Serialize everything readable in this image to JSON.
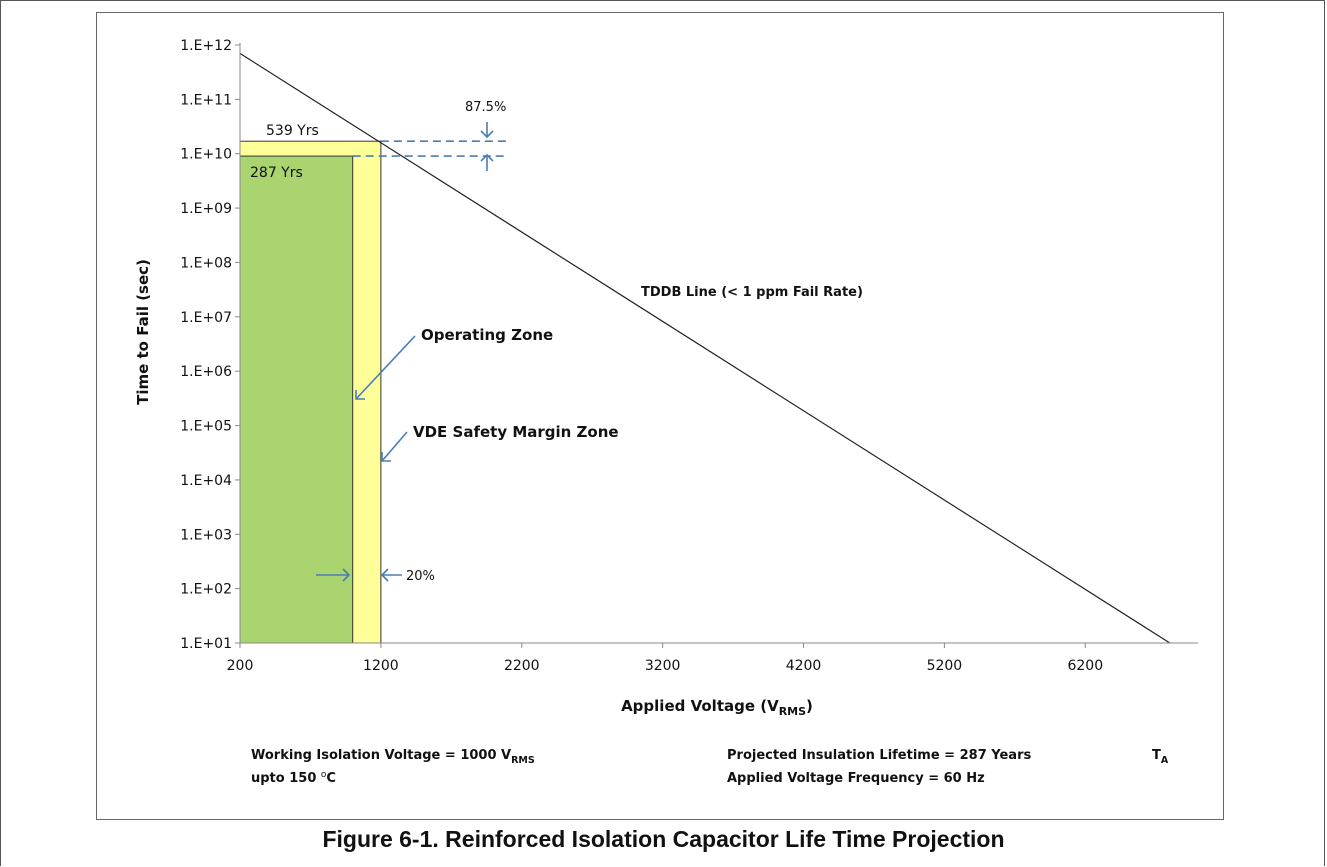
{
  "caption": "Figure 6-1. Reinforced Isolation Capacitor Life Time Projection",
  "chart_data": {
    "type": "line",
    "title": "",
    "xlabel_main": "Applied Voltage (V",
    "xlabel_sub": "RMS",
    "xlabel_close": ")",
    "ylabel": "Time to Fail (sec)",
    "x_ticks": [
      200,
      1200,
      2200,
      3200,
      4200,
      5200,
      6200
    ],
    "x_tick_labels": [
      "200",
      "1200",
      "2200",
      "3200",
      "4200",
      "5200",
      "6200"
    ],
    "xlim": [
      200,
      7000
    ],
    "y_scale": "log",
    "ylim": [
      10.0,
      1000000000000.0
    ],
    "y_ticks": [
      10.0,
      100.0,
      1000.0,
      10000.0,
      100000.0,
      1000000.0,
      10000000.0,
      100000000.0,
      1000000000.0,
      10000000000.0,
      100000000000.0,
      1000000000000.0
    ],
    "y_tick_labels": [
      "1.E+01",
      "1.E+02",
      "1.E+03",
      "1.E+04",
      "1.E+05",
      "1.E+06",
      "1.E+07",
      "1.E+08",
      "1.E+09",
      "1.E+10",
      "1.E+11",
      "1.E+12"
    ],
    "grid": false,
    "series": [
      {
        "name": "TDDB Line (< 1 ppm Fail Rate)",
        "color": "#222222",
        "x": [
          200,
          6800
        ],
        "y": [
          700000000000.0,
          10.0
        ]
      }
    ],
    "zones": [
      {
        "name": "Operating Zone",
        "x": [
          200,
          1000
        ],
        "y_top": 9050000000.0,
        "fill": "#a9d46f",
        "label": "287 Yrs"
      },
      {
        "name": "VDE Safety Margin Zone",
        "x": [
          1000,
          1200
        ],
        "y_top": 17000000000.0,
        "fill": "#ffff99",
        "label": "539 Yrs"
      }
    ],
    "annotations": {
      "tddb_label": "TDDB Line (< 1 ppm Fail Rate)",
      "operating_zone": "Operating  Zone",
      "vde_zone": "VDE Safety Margin Zone",
      "margin_time": "87.5%",
      "margin_voltage": "20%",
      "yrs_539": "539 Yrs",
      "yrs_287": "287 Yrs"
    },
    "accent_color": "#4a7db5"
  },
  "footer": {
    "working_isolation_voltage": "Working Isolation Voltage = 1000 V",
    "working_isolation_voltage_sub": "RMS",
    "upto_temp_main": "upto 150 ",
    "upto_temp_sup": "o",
    "upto_temp_unit": "C",
    "projected_lifetime": "Projected Insulation Lifetime = 287 Years",
    "frequency": "Applied Voltage Frequency = 60 Hz",
    "ta_main": "T",
    "ta_sub": "A"
  }
}
